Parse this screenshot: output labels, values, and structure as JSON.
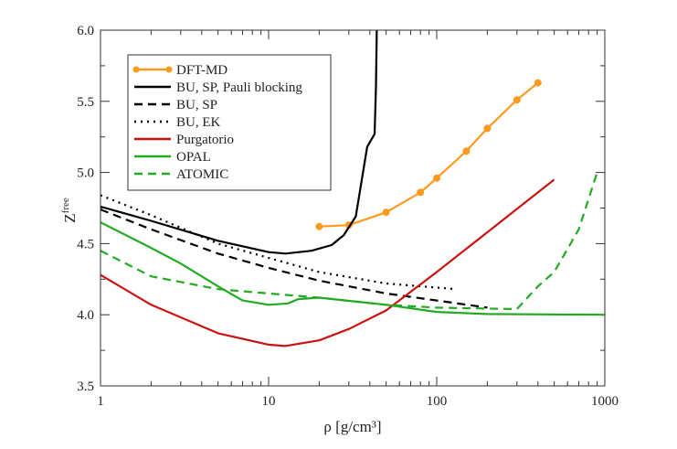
{
  "chart_data": {
    "type": "line",
    "title": "",
    "xlabel": "ρ [g/cm³]",
    "ylabel_main": "Z",
    "ylabel_sup": "free",
    "xscale": "log",
    "xlim": [
      1,
      1000
    ],
    "ylim": [
      3.5,
      6.0
    ],
    "xticks": [
      1,
      10,
      100,
      1000
    ],
    "xtick_labels": [
      "1",
      "10",
      "100",
      "1000"
    ],
    "yticks": [
      3.5,
      4.0,
      4.5,
      5.0,
      5.5,
      6.0
    ],
    "ytick_labels": [
      "3.5",
      "4.0",
      "4.5",
      "5.0",
      "5.5",
      "6.0"
    ],
    "legend_position": "top-left",
    "series": [
      {
        "name": "DFT-MD",
        "color": "#ff9a1f",
        "style": "solid-markers",
        "x": [
          20,
          30,
          50,
          80,
          100,
          150,
          200,
          300,
          400
        ],
        "y": [
          4.62,
          4.63,
          4.72,
          4.86,
          4.96,
          5.15,
          5.31,
          5.51,
          5.63
        ]
      },
      {
        "name": "BU, SP, Pauli blocking",
        "color": "#000000",
        "style": "solid",
        "x": [
          1,
          2,
          5,
          10,
          12.6,
          18,
          23.7,
          28,
          33,
          38.6,
          42.7,
          43.5,
          44
        ],
        "y": [
          4.76,
          4.66,
          4.52,
          4.44,
          4.43,
          4.45,
          4.49,
          4.56,
          4.69,
          5.18,
          5.27,
          5.6,
          6.0
        ]
      },
      {
        "name": "BU, SP",
        "color": "#000000",
        "style": "dashed",
        "x": [
          1,
          2,
          5,
          10,
          20,
          50,
          100,
          200
        ],
        "y": [
          4.74,
          4.6,
          4.43,
          4.33,
          4.24,
          4.15,
          4.1,
          4.05
        ]
      },
      {
        "name": "BU, EK",
        "color": "#000000",
        "style": "dotted",
        "x": [
          1,
          2,
          5,
          10,
          20,
          50,
          130
        ],
        "y": [
          4.84,
          4.7,
          4.5,
          4.4,
          4.3,
          4.22,
          4.18
        ]
      },
      {
        "name": "Purgatorio",
        "color": "#cc1111",
        "style": "solid",
        "x": [
          1,
          2,
          5,
          10,
          12.5,
          20,
          30,
          50,
          100,
          200,
          500
        ],
        "y": [
          4.28,
          4.07,
          3.87,
          3.79,
          3.78,
          3.82,
          3.9,
          4.03,
          4.3,
          4.58,
          4.95
        ]
      },
      {
        "name": "OPAL",
        "color": "#22aa22",
        "style": "solid",
        "x": [
          1,
          2,
          3,
          5,
          7,
          10,
          13,
          15,
          20,
          50,
          100,
          200,
          1000
        ],
        "y": [
          4.65,
          4.47,
          4.36,
          4.2,
          4.1,
          4.07,
          4.08,
          4.11,
          4.12,
          4.07,
          4.02,
          4.005,
          4.0
        ]
      },
      {
        "name": "ATOMIC",
        "color": "#22aa22",
        "style": "dashed",
        "x": [
          1,
          2,
          5,
          10,
          20,
          50,
          100,
          300,
          400,
          500,
          700,
          900
        ],
        "y": [
          4.45,
          4.27,
          4.18,
          4.15,
          4.12,
          4.07,
          4.05,
          4.04,
          4.2,
          4.3,
          4.6,
          5.0
        ]
      }
    ]
  }
}
